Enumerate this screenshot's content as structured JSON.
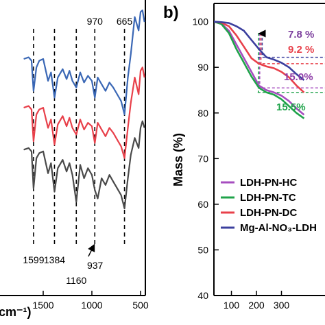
{
  "chart_data": [
    {
      "panel": "a",
      "type": "line",
      "xlabel_visible": "cm⁻¹)",
      "ylabel": "",
      "xlim": [
        4000,
        460
      ],
      "x_reversed": true,
      "x_ticks": [
        1500,
        1000,
        500
      ],
      "x_tick_labels": [
        "1500",
        "1000",
        "500"
      ],
      "peak_labels": [
        {
          "text": "1599",
          "x": 1599
        },
        {
          "text": "1384",
          "x": 1384
        },
        {
          "text": "1160",
          "x": 1160
        },
        {
          "text": "937",
          "x": 937
        },
        {
          "text": "970",
          "x": 970
        },
        {
          "text": "665",
          "x": 665
        }
      ],
      "dashed_lines_x": [
        1599,
        1384,
        1160,
        970,
        665
      ],
      "series": [
        {
          "color": "#3a67b5",
          "x": [
            1700,
            1650,
            1620,
            1599,
            1570,
            1540,
            1500,
            1450,
            1420,
            1384,
            1350,
            1300,
            1260,
            1230,
            1200,
            1160,
            1120,
            1080,
            1040,
            1000,
            970,
            940,
            900,
            860,
            820,
            780,
            740,
            700,
            665,
            630,
            600,
            560,
            520,
            500,
            480,
            460
          ],
          "y": [
            71,
            72,
            70,
            52,
            66,
            70,
            71,
            58,
            63,
            48,
            60,
            65,
            59,
            64,
            58,
            54,
            63,
            57,
            61,
            58,
            48,
            60,
            56,
            52,
            57,
            54,
            50,
            46,
            38,
            60,
            74,
            96,
            88,
            99,
            100,
            93
          ]
        },
        {
          "color": "#e8404a",
          "x": [
            1700,
            1650,
            1620,
            1599,
            1570,
            1540,
            1500,
            1450,
            1420,
            1384,
            1350,
            1300,
            1260,
            1230,
            1200,
            1160,
            1120,
            1080,
            1040,
            1000,
            970,
            940,
            900,
            860,
            820,
            780,
            740,
            700,
            665,
            630,
            600,
            560,
            520,
            500,
            480,
            460
          ],
          "y": [
            42,
            43,
            41,
            22,
            38,
            41,
            42,
            30,
            35,
            20,
            32,
            37,
            31,
            36,
            30,
            26,
            35,
            29,
            33,
            31,
            21,
            33,
            29,
            25,
            30,
            27,
            23,
            19,
            12,
            30,
            45,
            60,
            50,
            64,
            66,
            60
          ]
        },
        {
          "color": "#4a4a4a",
          "x": [
            1700,
            1650,
            1620,
            1599,
            1570,
            1540,
            1500,
            1450,
            1420,
            1384,
            1350,
            1300,
            1260,
            1230,
            1200,
            1160,
            1120,
            1080,
            1040,
            1000,
            970,
            940,
            900,
            860,
            820,
            780,
            740,
            700,
            665,
            630,
            600,
            560,
            520,
            500,
            480,
            460
          ],
          "y": [
            17,
            18,
            16,
            -6,
            12,
            15,
            16,
            3,
            9,
            -8,
            6,
            11,
            4,
            9,
            2,
            -14,
            8,
            0,
            6,
            2,
            -7,
            -12,
            0,
            -4,
            2,
            -2,
            -6,
            -10,
            -18,
            0,
            14,
            24,
            18,
            30,
            34,
            30
          ]
        }
      ]
    },
    {
      "panel": "b",
      "type": "line",
      "ylabel": "Mass (%)",
      "xlabel": "",
      "xlim": [
        30,
        474
      ],
      "ylim": [
        40,
        104
      ],
      "y_ticks": [
        40,
        50,
        60,
        70,
        80,
        90,
        100
      ],
      "y_tick_labels": [
        "40",
        "50",
        "60",
        "70",
        "80",
        "90",
        "100"
      ],
      "x_ticks": [
        100,
        200,
        300
      ],
      "x_tick_labels": [
        "100",
        "200",
        "300"
      ],
      "mass_loss_labels": [
        {
          "text": "7.8 %",
          "color": "#7a3d9c"
        },
        {
          "text": "9.2 %",
          "color": "#e8404a"
        },
        {
          "text": "15.0%",
          "color": "#8f3fa8"
        },
        {
          "text": "15.5%",
          "color": "#1fa34a"
        }
      ],
      "series": [
        {
          "name": "LDH-PN-HC",
          "color": "#a64dbf",
          "x": [
            30,
            60,
            90,
            120,
            150,
            180,
            210,
            240,
            270,
            300,
            330,
            360,
            390
          ],
          "y": [
            100,
            99.6,
            98,
            95,
            92,
            89,
            86,
            85,
            84.5,
            83.8,
            82.6,
            81,
            79.6
          ]
        },
        {
          "name": "LDH-PN-TC",
          "color": "#1fa34a",
          "x": [
            30,
            60,
            90,
            120,
            150,
            180,
            210,
            240,
            270,
            300,
            330,
            360,
            390
          ],
          "y": [
            100,
            99.5,
            97.5,
            94,
            91,
            88,
            85.5,
            84.5,
            84,
            83,
            81.5,
            80,
            78.8
          ]
        },
        {
          "name": "LDH-PN-DC",
          "color": "#e8404a",
          "x": [
            30,
            60,
            90,
            120,
            150,
            180,
            210,
            240,
            270,
            300,
            330,
            360,
            390
          ],
          "y": [
            100,
            99.8,
            99,
            97,
            94.5,
            92,
            90.8,
            90.2,
            89.8,
            89,
            87.8,
            86,
            84.5
          ]
        },
        {
          "name": "Mg-Al-NO₃-LDH",
          "color": "#3b3f9e",
          "x": [
            30,
            60,
            90,
            120,
            150,
            180,
            210,
            240,
            270,
            300,
            330,
            360,
            390
          ],
          "y": [
            100,
            99.9,
            99.7,
            99,
            98,
            96,
            94,
            92.2,
            91.7,
            91,
            90,
            88.5,
            87.2
          ]
        }
      ],
      "legend_location": "lower-right"
    }
  ],
  "panel_labels": {
    "b": "b)"
  }
}
